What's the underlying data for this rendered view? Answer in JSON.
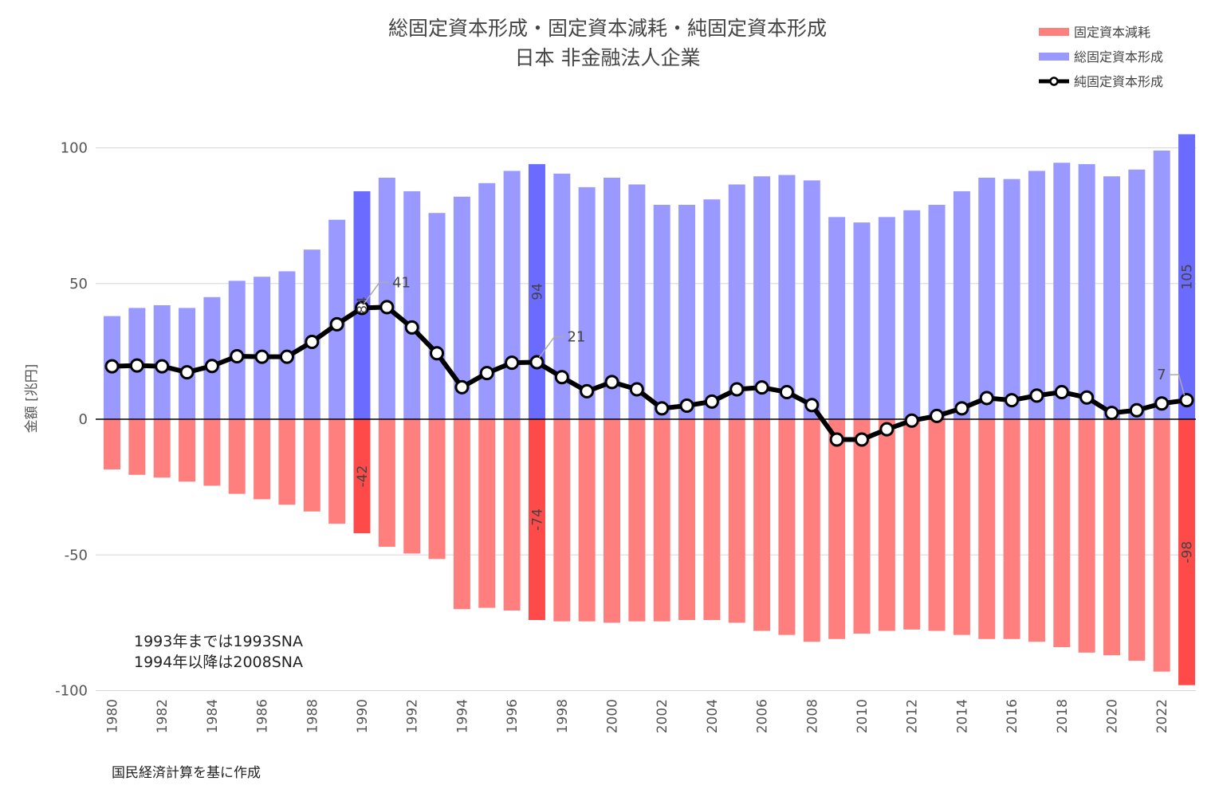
{
  "chart_data": {
    "type": "bar",
    "title": "総固定資本形成・固定資本減耗・純固定資本形成",
    "subtitle": "日本 非金融法人企業",
    "ylabel": "金額 [兆円]",
    "xlabel": "",
    "ylim": [
      -100,
      105
    ],
    "yticks": [
      100,
      50,
      0,
      -50,
      -100
    ],
    "grid": true,
    "legend_position": "top-right",
    "x": [
      1980,
      1981,
      1982,
      1983,
      1984,
      1985,
      1986,
      1987,
      1988,
      1989,
      1990,
      1991,
      1992,
      1993,
      1994,
      1995,
      1996,
      1997,
      1998,
      1999,
      2000,
      2001,
      2002,
      2003,
      2004,
      2005,
      2006,
      2007,
      2008,
      2009,
      2010,
      2011,
      2012,
      2013,
      2014,
      2015,
      2016,
      2017,
      2018,
      2019,
      2020,
      2021,
      2022,
      2023
    ],
    "x_tick_labels": [
      "1980",
      "1982",
      "1984",
      "1986",
      "1988",
      "1990",
      "1992",
      "1994",
      "1996",
      "1998",
      "2000",
      "2002",
      "2004",
      "2006",
      "2008",
      "2010",
      "2012",
      "2014",
      "2016",
      "2018",
      "2020",
      "2022"
    ],
    "series": [
      {
        "name": "固定資本減耗",
        "kind": "bar",
        "color": "#ff7f7f",
        "highlight_color": "#ff4a4a",
        "values": [
          -18.5,
          -20.5,
          -21.5,
          -23,
          -24.5,
          -27.5,
          -29.5,
          -31.5,
          -34,
          -38.5,
          -42,
          -47,
          -49.5,
          -51.5,
          -70,
          -69.5,
          -70.5,
          -74,
          -74.5,
          -74.5,
          -75,
          -74.5,
          -74.5,
          -74,
          -74,
          -75,
          -78,
          -79.5,
          -82,
          -81,
          -79,
          -78,
          -77.5,
          -78,
          -79.5,
          -81,
          -81,
          -82,
          -84,
          -86,
          -87,
          -89,
          -93,
          -98
        ]
      },
      {
        "name": "総固定資本形成",
        "kind": "bar",
        "color": "#9999ff",
        "highlight_color": "#6b6bff",
        "values": [
          38,
          41,
          42,
          41,
          45,
          51,
          52.5,
          54.5,
          62.5,
          73.5,
          84,
          89,
          84,
          76,
          82,
          87,
          91.5,
          94,
          90.5,
          85.5,
          89,
          86.5,
          79,
          79,
          81,
          86.5,
          89.5,
          90,
          88,
          74.5,
          72.5,
          74.5,
          77,
          79,
          84,
          89,
          88.5,
          91.5,
          94.5,
          94,
          89.5,
          92,
          99,
          105
        ]
      },
      {
        "name": "純固定資本形成",
        "kind": "line",
        "color": "#000000",
        "values": [
          19.5,
          19.8,
          19.5,
          17.3,
          19.6,
          23.2,
          23.0,
          23.0,
          28.5,
          35,
          41,
          41.3,
          33.8,
          24.3,
          11.8,
          17,
          20.8,
          21,
          15.5,
          10.3,
          13.7,
          11,
          4,
          5,
          6.5,
          11,
          11.7,
          10,
          5.2,
          -7.5,
          -7.5,
          -3.7,
          -0.5,
          1.2,
          4,
          7.8,
          7,
          8.7,
          10,
          8,
          2.3,
          3.3,
          5.8,
          7
        ]
      }
    ],
    "highlight_years": [
      1990,
      1997,
      2023
    ],
    "data_labels": [
      {
        "year": 1990,
        "series": "総固定資本形成",
        "text": "84"
      },
      {
        "year": 1990,
        "series": "固定資本減耗",
        "text": "-42"
      },
      {
        "year": 1990,
        "series": "純固定資本形成",
        "text": "41"
      },
      {
        "year": 1997,
        "series": "総固定資本形成",
        "text": "94"
      },
      {
        "year": 1997,
        "series": "固定資本減耗",
        "text": "-74"
      },
      {
        "year": 1997,
        "series": "純固定資本形成",
        "text": "21"
      },
      {
        "year": 2023,
        "series": "総固定資本形成",
        "text": "105"
      },
      {
        "year": 2023,
        "series": "固定資本減耗",
        "text": "-98"
      },
      {
        "year": 2023,
        "series": "純固定資本形成",
        "text": "7"
      }
    ],
    "annotations": [
      "1993年までは1993SNA",
      "1994年以降は2008SNA"
    ],
    "source": "国民経済計算を基に作成"
  }
}
